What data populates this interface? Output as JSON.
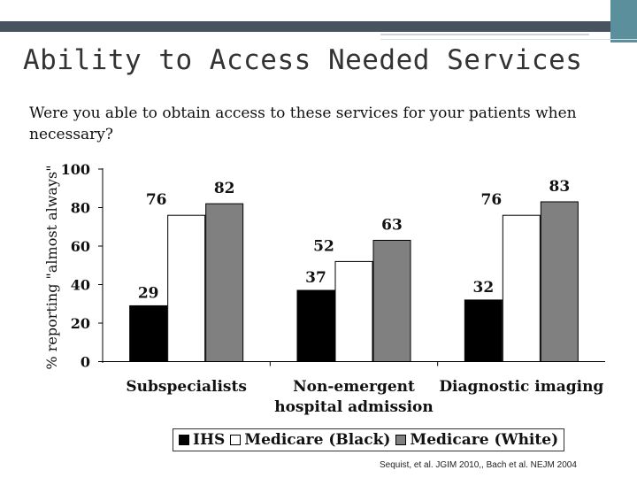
{
  "slide": {
    "title": "Ability to Access Needed Services",
    "question": "Were you able to obtain access to these services for your patients when necessary?",
    "citation": "Sequist, et al. JGIM 2010,, Bach et al. NEJM 2004"
  },
  "colors": {
    "header_dark": "#47535e",
    "header_teal": "#5b8f9b",
    "ihs": "#000000",
    "medicare_black": "#ffffff",
    "medicare_white": "#808080"
  },
  "chart_data": {
    "type": "bar",
    "categories": [
      "Subspecialists",
      "Non-emergent hospital admission",
      "Diagnostic imaging"
    ],
    "category_lines": [
      [
        "Subspecialists"
      ],
      [
        "Non-emergent",
        "hospital admission"
      ],
      [
        "Diagnostic imaging"
      ]
    ],
    "series": [
      {
        "name": "IHS",
        "values": [
          29,
          37,
          32
        ],
        "color": "#000000"
      },
      {
        "name": "Medicare (Black)",
        "values": [
          76,
          52,
          76
        ],
        "color": "#ffffff"
      },
      {
        "name": "Medicare (White)",
        "values": [
          82,
          63,
          83
        ],
        "color": "#808080"
      }
    ],
    "ylabel": "% reporting \"almost always\"",
    "ylim": [
      0,
      100
    ],
    "yticks": [
      0,
      20,
      40,
      60,
      80,
      100
    ],
    "grid": false,
    "data_labels": true,
    "legend_position": "bottom"
  }
}
